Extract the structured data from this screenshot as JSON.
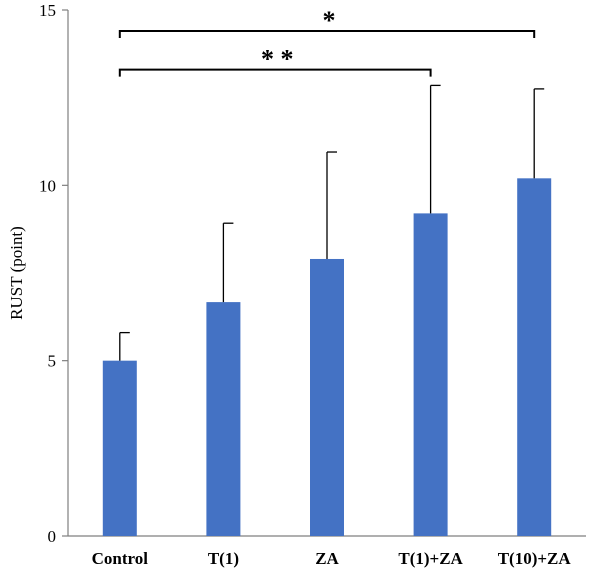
{
  "chart_data": {
    "type": "bar",
    "title": "",
    "xlabel": "",
    "ylabel": "RUST (point)",
    "ylim": [
      0,
      15
    ],
    "yticks": [
      0,
      5,
      10,
      15
    ],
    "grid": false,
    "categories": [
      "Control",
      "T(1)",
      "ZA",
      "T(1)+ZA",
      "T(10)+ZA"
    ],
    "values": [
      5.0,
      6.67,
      7.9,
      9.2,
      10.2
    ],
    "errors": [
      0.8,
      2.25,
      3.05,
      3.65,
      2.55
    ],
    "bar_color": "#4472C4",
    "significance": [
      {
        "from": 0,
        "to": 4,
        "level": 14.4,
        "label": "*"
      },
      {
        "from": 0,
        "to": 3,
        "level": 13.3,
        "label": "* *"
      }
    ]
  }
}
